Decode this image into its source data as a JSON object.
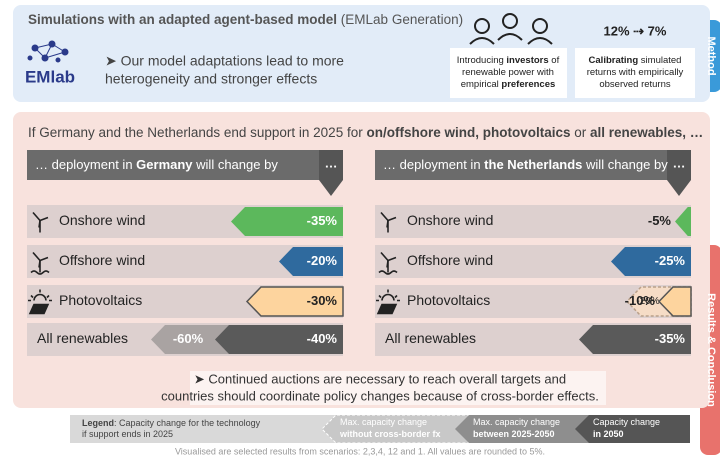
{
  "method": {
    "title": [
      {
        "text": "Simulations with an adapted agent-based model",
        "bold": true
      },
      {
        "text": " (EMLab Generation)"
      }
    ],
    "logo": "EMlab",
    "summary": [
      "➤ Our model adaptations lead to more",
      "heterogeneity and stronger effects"
    ],
    "rate": "12% ⇢ 7%",
    "boxes": [
      {
        "lines": [
          [
            {
              "text": "Introducing "
            },
            {
              "text": "investors",
              "bold": true
            },
            {
              "text": " of"
            }
          ],
          [
            {
              "text": "renewable power with"
            }
          ],
          [
            {
              "text": "empirical "
            },
            {
              "text": "preferences",
              "bold": true
            }
          ]
        ]
      },
      {
        "lines": [
          [
            {
              "text": "Calibrating",
              "bold": true
            },
            {
              "text": " simulated"
            }
          ],
          [
            {
              "text": "returns with empirically"
            }
          ],
          [
            {
              "text": "observed returns"
            }
          ]
        ]
      }
    ],
    "tab": "Method"
  },
  "results": {
    "question": [
      {
        "text": "If Germany and the Netherlands end support in 2025 for "
      },
      {
        "text": "on/offshore wind, photovoltaics",
        "bold": true
      },
      {
        "text": " or "
      },
      {
        "text": "all renewables, …",
        "bold": true
      }
    ],
    "more": "…",
    "countries": [
      {
        "header": [
          {
            "text": "… deployment in "
          },
          {
            "text": "Germany",
            "bold": true
          },
          {
            "text": " will change by"
          }
        ],
        "rows": [
          {
            "technology": "Onshore wind",
            "color": "#5cb85c",
            "value": -35,
            "label": "-35%"
          },
          {
            "technology": "Offshore wind",
            "color": "#2f6a9e",
            "value": -20,
            "label": "-20%"
          },
          {
            "technology": "Photovoltaics",
            "color": "#fdd49e",
            "value": -30,
            "label": "-30%"
          },
          {
            "technology": "All renewables",
            "color": "#5a5a5a",
            "value": -40,
            "label": "-40%",
            "secondary": {
              "value": -60,
              "label": "-60%",
              "color": "#a9a3a2",
              "dashed": false
            }
          }
        ]
      },
      {
        "header": [
          {
            "text": "… deployment in "
          },
          {
            "text": "the Netherlands",
            "bold": true
          },
          {
            "text": " will change by"
          }
        ],
        "rows": [
          {
            "technology": "Onshore wind",
            "color": "#5cb85c",
            "value": -5,
            "label": "-5%"
          },
          {
            "technology": "Offshore wind",
            "color": "#2f6a9e",
            "value": -25,
            "label": "-25%"
          },
          {
            "technology": "Photovoltaics",
            "color": "#fdd49e",
            "value": -10,
            "label": "-10%",
            "secondary": {
              "value": -20,
              "label": "-20%",
              "color": "#f6dcc6",
              "dashed": true
            }
          },
          {
            "technology": "All renewables",
            "color": "#5a5a5a",
            "value": -35,
            "label": "-35%"
          }
        ]
      }
    ],
    "conclusion": [
      "➤ Continued auctions are necessary to reach overall targets and",
      "countries should coordinate policy changes because of cross-border effects."
    ],
    "tab": "Results & Conclusion"
  },
  "legend": {
    "text": [
      [
        {
          "text": "Legend",
          "bold": true
        },
        {
          "text": ": Capacity change for the technology"
        }
      ],
      [
        {
          "text": "if support ends in 2025"
        }
      ]
    ],
    "items": [
      {
        "color": "#c8c8c8",
        "lines": [
          [
            {
              "text": "Max. capacity change"
            }
          ],
          [
            {
              "text": "without cross-border fx",
              "bold": true
            }
          ]
        ]
      },
      {
        "color": "#8e8e8e",
        "lines": [
          [
            {
              "text": "Max. capacity change"
            }
          ],
          [
            {
              "text": "between 2025-2050",
              "bold": true
            }
          ]
        ]
      },
      {
        "color": "#555555",
        "lines": [
          [
            {
              "text": "Capacity change"
            }
          ],
          [
            {
              "text": "in 2050",
              "bold": true
            }
          ]
        ]
      }
    ],
    "footnote": "Visualised are selected results from scenarios: 2,3,4, 12 and 1. All values are rounded to 5%."
  }
}
